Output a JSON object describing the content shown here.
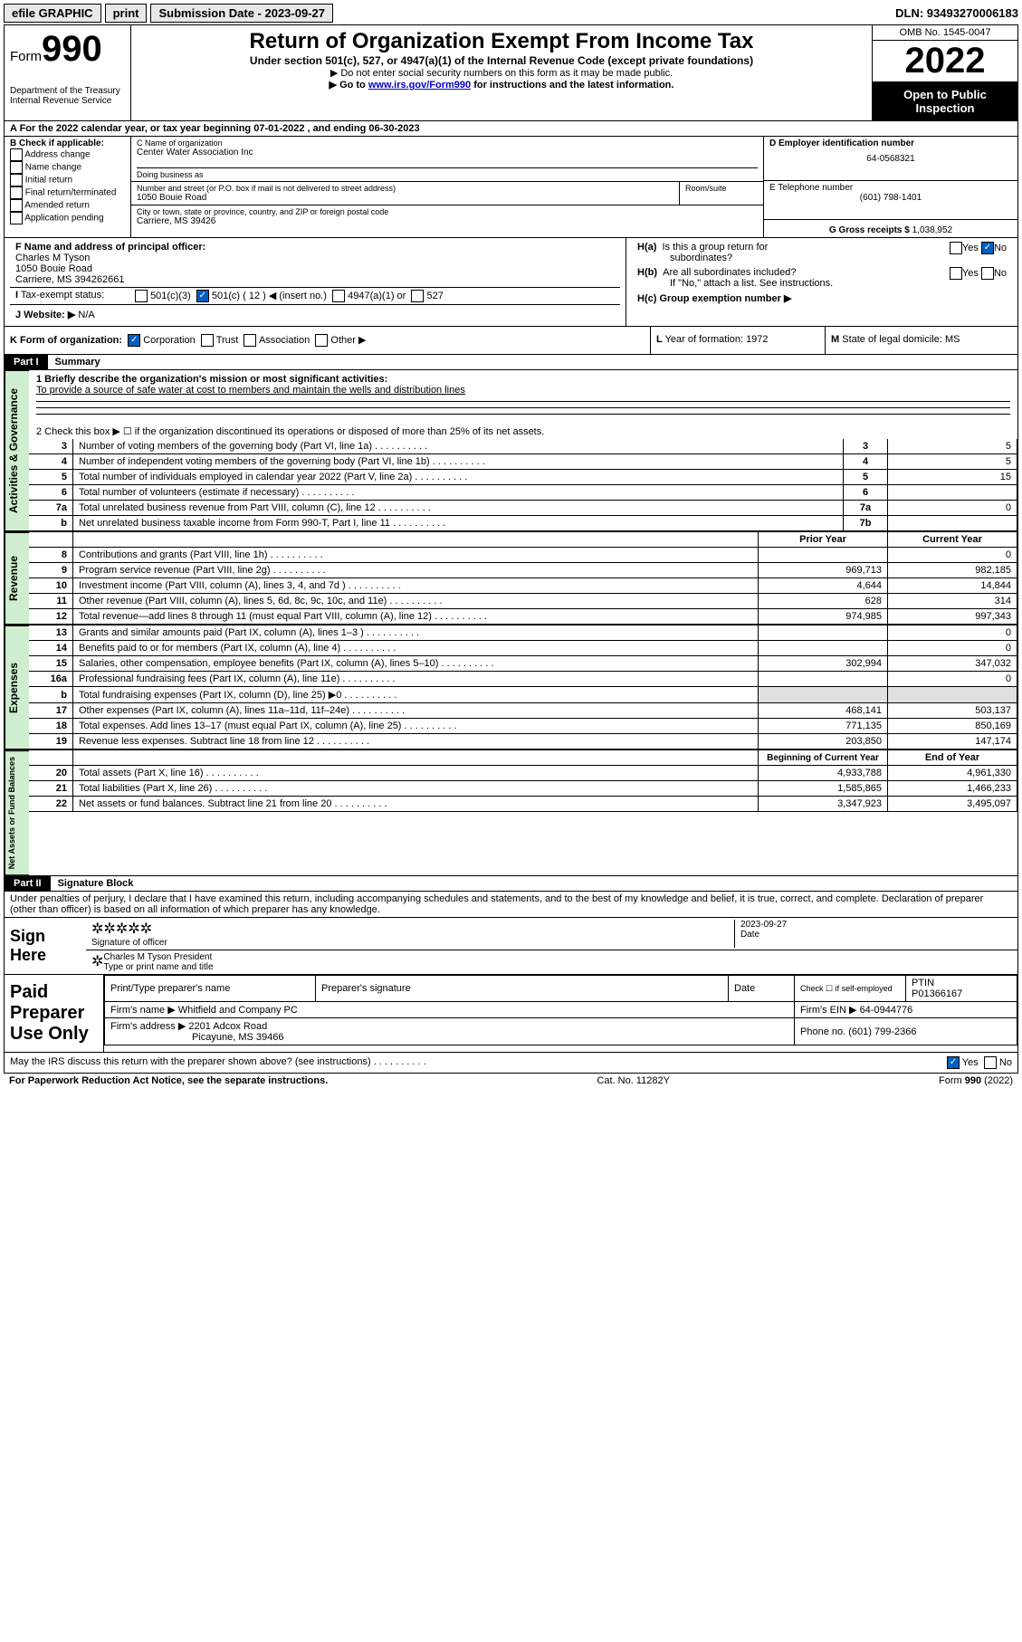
{
  "topbar": {
    "efile": "efile GRAPHIC",
    "print": "print",
    "sub_label": "Submission Date - 2023-09-27",
    "dln": "DLN: 93493270006183"
  },
  "header": {
    "form_prefix": "Form",
    "form_no": "990",
    "dept": "Department of the Treasury",
    "irs": "Internal Revenue Service",
    "title": "Return of Organization Exempt From Income Tax",
    "subtitle": "Under section 501(c), 527, or 4947(a)(1) of the Internal Revenue Code (except private foundations)",
    "note1": "▶ Do not enter social security numbers on this form as it may be made public.",
    "note2_a": "▶ Go to ",
    "note2_link": "www.irs.gov/Form990",
    "note2_b": " for instructions and the latest information.",
    "omb": "OMB No. 1545-0047",
    "year": "2022",
    "open": "Open to Public Inspection"
  },
  "sectionA": {
    "taxyear": "A For the 2022 calendar year, or tax year beginning 07-01-2022    , and ending 06-30-2023",
    "b_label": "B Check if applicable:",
    "b_items": [
      "Address change",
      "Name change",
      "Initial return",
      "Final return/terminated",
      "Amended return",
      "Application pending"
    ],
    "c_label": "C Name of organization",
    "c_name": "Center Water Association Inc",
    "dba_label": "Doing business as",
    "addr_label": "Number and street (or P.O. box if mail is not delivered to street address)",
    "room_label": "Room/suite",
    "addr": "1050 Bouie Road",
    "city_label": "City or town, state or province, country, and ZIP or foreign postal code",
    "city": "Carriere, MS  39426",
    "d_label": "D Employer identification number",
    "d_val": "64-0568321",
    "e_label": "E Telephone number",
    "e_val": "(601) 798-1401",
    "g_label": "G Gross receipts $",
    "g_val": "1,038,952",
    "f_label": "F  Name and address of principal officer:",
    "f_name": "Charles M Tyson",
    "f_addr1": "1050 Bouie Road",
    "f_addr2": "Carriere, MS  394262661",
    "ha_label": "H(a)  Is this a group return for subordinates?",
    "hb_label": "H(b)  Are all subordinates included?",
    "hb_note": "If \"No,\" attach a list. See instructions.",
    "hc_label": "H(c)  Group exemption number ▶",
    "i_label": "I Tax-exempt status:",
    "i_501c3": "501(c)(3)",
    "i_501c": "501(c) ( 12 ) ◀ (insert no.)",
    "i_4947": "4947(a)(1) or",
    "i_527": "527",
    "j_label": "J Website: ▶",
    "j_val": "N/A",
    "k_label": "K Form of organization:",
    "k_corp": "Corporation",
    "k_trust": "Trust",
    "k_assoc": "Association",
    "k_other": "Other ▶",
    "l_label": "L Year of formation: 1972",
    "m_label": "M State of legal domicile: MS",
    "yes": "Yes",
    "no": "No"
  },
  "part1": {
    "header": "Part I",
    "title": "Summary",
    "tabs": {
      "gov": "Activities & Governance",
      "rev": "Revenue",
      "exp": "Expenses",
      "net": "Net Assets or Fund Balances"
    },
    "line1_label": "1  Briefly describe the organization's mission or most significant activities:",
    "line1_val": "To provide a source of safe water at cost to members and maintain the wells and distribution lines",
    "line2": "2   Check this box ▶ ☐  if the organization discontinued its operations or disposed of more than 25% of its net assets.",
    "gov_rows": [
      {
        "n": "3",
        "label": "Number of voting members of the governing body (Part VI, line 1a)",
        "box": "3",
        "val": "5"
      },
      {
        "n": "4",
        "label": "Number of independent voting members of the governing body (Part VI, line 1b)",
        "box": "4",
        "val": "5"
      },
      {
        "n": "5",
        "label": "Total number of individuals employed in calendar year 2022 (Part V, line 2a)",
        "box": "5",
        "val": "15"
      },
      {
        "n": "6",
        "label": "Total number of volunteers (estimate if necessary)",
        "box": "6",
        "val": ""
      },
      {
        "n": "7a",
        "label": "Total unrelated business revenue from Part VIII, column (C), line 12",
        "box": "7a",
        "val": "0"
      },
      {
        "n": "b",
        "label": "Net unrelated business taxable income from Form 990-T, Part I, line 11",
        "box": "7b",
        "val": ""
      }
    ],
    "col_headers": {
      "prior": "Prior Year",
      "current": "Current Year"
    },
    "rev_rows": [
      {
        "n": "8",
        "label": "Contributions and grants (Part VIII, line 1h)",
        "p": "",
        "c": "0"
      },
      {
        "n": "9",
        "label": "Program service revenue (Part VIII, line 2g)",
        "p": "969,713",
        "c": "982,185"
      },
      {
        "n": "10",
        "label": "Investment income (Part VIII, column (A), lines 3, 4, and 7d )",
        "p": "4,644",
        "c": "14,844"
      },
      {
        "n": "11",
        "label": "Other revenue (Part VIII, column (A), lines 5, 6d, 8c, 9c, 10c, and 11e)",
        "p": "628",
        "c": "314"
      },
      {
        "n": "12",
        "label": "Total revenue—add lines 8 through 11 (must equal Part VIII, column (A), line 12)",
        "p": "974,985",
        "c": "997,343"
      }
    ],
    "exp_rows": [
      {
        "n": "13",
        "label": "Grants and similar amounts paid (Part IX, column (A), lines 1–3 )",
        "p": "",
        "c": "0"
      },
      {
        "n": "14",
        "label": "Benefits paid to or for members (Part IX, column (A), line 4)",
        "p": "",
        "c": "0"
      },
      {
        "n": "15",
        "label": "Salaries, other compensation, employee benefits (Part IX, column (A), lines 5–10)",
        "p": "302,994",
        "c": "347,032"
      },
      {
        "n": "16a",
        "label": "Professional fundraising fees (Part IX, column (A), line 11e)",
        "p": "",
        "c": "0"
      },
      {
        "n": "b",
        "label": "Total fundraising expenses (Part IX, column (D), line 25) ▶0",
        "p": "shade",
        "c": "shade"
      },
      {
        "n": "17",
        "label": "Other expenses (Part IX, column (A), lines 11a–11d, 11f–24e)",
        "p": "468,141",
        "c": "503,137"
      },
      {
        "n": "18",
        "label": "Total expenses. Add lines 13–17 (must equal Part IX, column (A), line 25)",
        "p": "771,135",
        "c": "850,169"
      },
      {
        "n": "19",
        "label": "Revenue less expenses. Subtract line 18 from line 12",
        "p": "203,850",
        "c": "147,174"
      }
    ],
    "net_headers": {
      "begin": "Beginning of Current Year",
      "end": "End of Year"
    },
    "net_rows": [
      {
        "n": "20",
        "label": "Total assets (Part X, line 16)",
        "p": "4,933,788",
        "c": "4,961,330"
      },
      {
        "n": "21",
        "label": "Total liabilities (Part X, line 26)",
        "p": "1,585,865",
        "c": "1,466,233"
      },
      {
        "n": "22",
        "label": "Net assets or fund balances. Subtract line 21 from line 20",
        "p": "3,347,923",
        "c": "3,495,097"
      }
    ]
  },
  "part2": {
    "header": "Part II",
    "title": "Signature Block",
    "declaration": "Under penalties of perjury, I declare that I have examined this return, including accompanying schedules and statements, and to the best of my knowledge and belief, it is true, correct, and complete. Declaration of preparer (other than officer) is based on all information of which preparer has any knowledge.",
    "sign_here": "Sign Here",
    "sig_officer": "Signature of officer",
    "sig_date_label": "Date",
    "sig_date": "2023-09-27",
    "sig_name": "Charles M Tyson President",
    "sig_name_label": "Type or print name and title",
    "paid_title": "Paid Preparer Use Only",
    "prep_name_label": "Print/Type preparer's name",
    "prep_sig_label": "Preparer's signature",
    "date_label": "Date",
    "check_label": "Check ☐ if self-employed",
    "ptin_label": "PTIN",
    "ptin": "P01366167",
    "firm_name_label": "Firm's name    ▶",
    "firm_name": "Whitfield and Company PC",
    "firm_ein_label": "Firm's EIN ▶",
    "firm_ein": "64-0944776",
    "firm_addr_label": "Firm's address ▶",
    "firm_addr1": "2201 Adcox Road",
    "firm_addr2": "Picayune, MS  39466",
    "phone_label": "Phone no.",
    "phone": "(601) 799-2366",
    "may_irs": "May the IRS discuss this return with the preparer shown above? (see instructions)"
  },
  "footer": {
    "paperwork": "For Paperwork Reduction Act Notice, see the separate instructions.",
    "cat": "Cat. No. 11282Y",
    "form": "Form 990 (2022)"
  }
}
